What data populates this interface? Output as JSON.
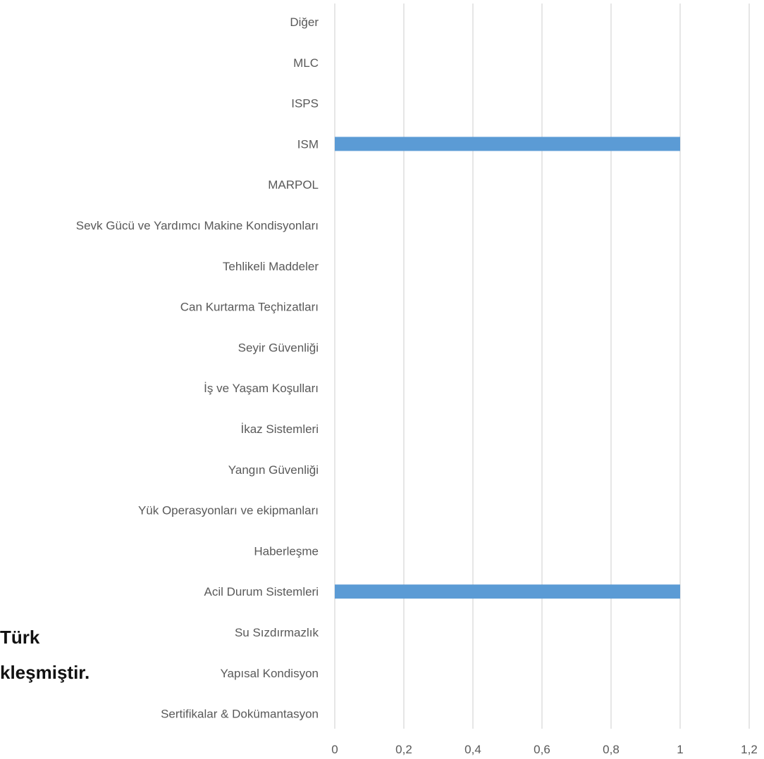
{
  "background_text": [
    "Türk",
    "kleşmiştir."
  ],
  "chart_data": {
    "type": "bar",
    "orientation": "horizontal",
    "categories": [
      "Diğer",
      "MLC",
      "ISPS",
      "ISM",
      "MARPOL",
      "Sevk Gücü ve Yardımcı Makine Kondisyonları",
      "Tehlikeli Maddeler",
      "Can Kurtarma Teçhizatları",
      "Seyir Güvenliği",
      "İş ve Yaşam Koşulları",
      "İkaz Sistemleri",
      "Yangın Güvenliği",
      "Yük Operasyonları ve ekipmanları",
      "Haberleşme",
      "Acil Durum Sistemleri",
      "Su Sızdırmazlık",
      "Yapısal Kondisyon",
      "Sertifikalar & Dokümantasyon"
    ],
    "values": [
      0,
      0,
      0,
      1,
      0,
      0,
      0,
      0,
      0,
      0,
      0,
      0,
      0,
      0,
      1,
      0,
      0,
      0
    ],
    "x_ticks": [
      "0",
      "0,2",
      "0,4",
      "0,6",
      "0,8",
      "1",
      "1,2"
    ],
    "xlim": [
      0,
      1.2
    ],
    "grid": "vertical",
    "bar_color": "#5B9BD5",
    "grid_color": "#D9D9D9",
    "legend": "none"
  }
}
